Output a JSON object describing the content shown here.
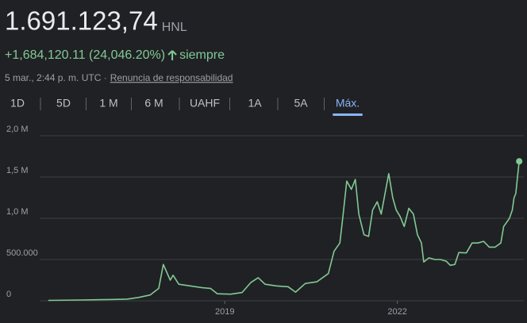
{
  "header": {
    "price": "1.691.123,74",
    "currency": "HNL",
    "change": "+1,684,120.11 (24,046.20%)",
    "period": "siempre",
    "timestamp": "5 mar., 2:44 p. m. UTC ·",
    "disclaimer": "Renuncia de responsabilidad"
  },
  "tabs": [
    "1D",
    "5D",
    "1 M",
    "6 M",
    "UAHF",
    "1A",
    "5A",
    "Máx."
  ],
  "selected_tab": 7,
  "chart_data": {
    "type": "line",
    "x": [
      2015.93,
      2016.5,
      2017.0,
      2017.3,
      2017.5,
      2017.7,
      2017.85,
      2017.93,
      2018.05,
      2018.1,
      2018.2,
      2018.4,
      2018.6,
      2018.75,
      2018.87,
      2019.1,
      2019.3,
      2019.45,
      2019.58,
      2019.7,
      2019.9,
      2020.1,
      2020.23,
      2020.4,
      2020.6,
      2020.8,
      2020.9,
      2021.0,
      2021.05,
      2021.12,
      2021.2,
      2021.27,
      2021.33,
      2021.42,
      2021.5,
      2021.57,
      2021.65,
      2021.72,
      2021.8,
      2021.85,
      2021.92,
      2021.98,
      2022.05,
      2022.12,
      2022.2,
      2022.28,
      2022.35,
      2022.42,
      2022.46,
      2022.55,
      2022.65,
      2022.75,
      2022.85,
      2022.92,
      2023.0,
      2023.07,
      2023.2,
      2023.3,
      2023.4,
      2023.5,
      2023.6,
      2023.7,
      2023.8,
      2023.85,
      2023.9,
      2023.95,
      2024.0,
      2024.03,
      2024.06,
      2024.09,
      2024.12
    ],
    "series": [
      {
        "color": "#81c995",
        "values": [
          5000,
          10000,
          15000,
          20000,
          40000,
          70000,
          150000,
          440000,
          250000,
          310000,
          200000,
          180000,
          160000,
          150000,
          85000,
          80000,
          100000,
          220000,
          280000,
          200000,
          180000,
          170000,
          105000,
          210000,
          230000,
          330000,
          600000,
          700000,
          1000000,
          1450000,
          1350000,
          1470000,
          1050000,
          800000,
          780000,
          1100000,
          1200000,
          1050000,
          1350000,
          1540000,
          1250000,
          1100000,
          1020000,
          900000,
          1120000,
          1050000,
          800000,
          700000,
          470000,
          520000,
          500000,
          500000,
          480000,
          430000,
          440000,
          585000,
          580000,
          700000,
          700000,
          720000,
          650000,
          650000,
          700000,
          900000,
          950000,
          1000000,
          1100000,
          1250000,
          1300000,
          1500000,
          1690000
        ]
      }
    ],
    "xlim": [
      2015.2,
      2024.2
    ],
    "xticks": [
      2019,
      2022
    ],
    "ylim": [
      0,
      2000000
    ],
    "yticks": [
      0,
      {
        "value": 500000,
        "label": "500.000"
      },
      {
        "value": 1000000,
        "label": "1,0 M"
      },
      {
        "value": 1500000,
        "label": "1,5 M"
      },
      {
        "value": 2000000,
        "label": "2,0 M"
      }
    ],
    "grid": true
  }
}
